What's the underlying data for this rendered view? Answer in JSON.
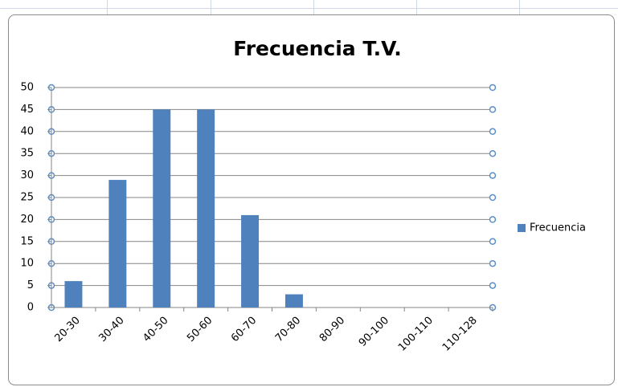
{
  "chart_data": {
    "type": "bar",
    "title": "Frecuencia T.V.",
    "categories": [
      "20-30",
      "30-40",
      "40-50",
      "50-60",
      "60-70",
      "70-80",
      "80-90",
      "90-100",
      "100-110",
      "110-128"
    ],
    "series": [
      {
        "name": "Frecuencia",
        "color": "#4f81bd",
        "values": [
          6,
          29,
          45,
          45,
          21,
          3,
          0,
          0,
          0,
          0
        ]
      }
    ],
    "ylim": [
      0,
      50
    ],
    "yticks": [
      0,
      5,
      10,
      15,
      20,
      25,
      30,
      35,
      40,
      45,
      50
    ],
    "grid": true,
    "legend": "right"
  }
}
